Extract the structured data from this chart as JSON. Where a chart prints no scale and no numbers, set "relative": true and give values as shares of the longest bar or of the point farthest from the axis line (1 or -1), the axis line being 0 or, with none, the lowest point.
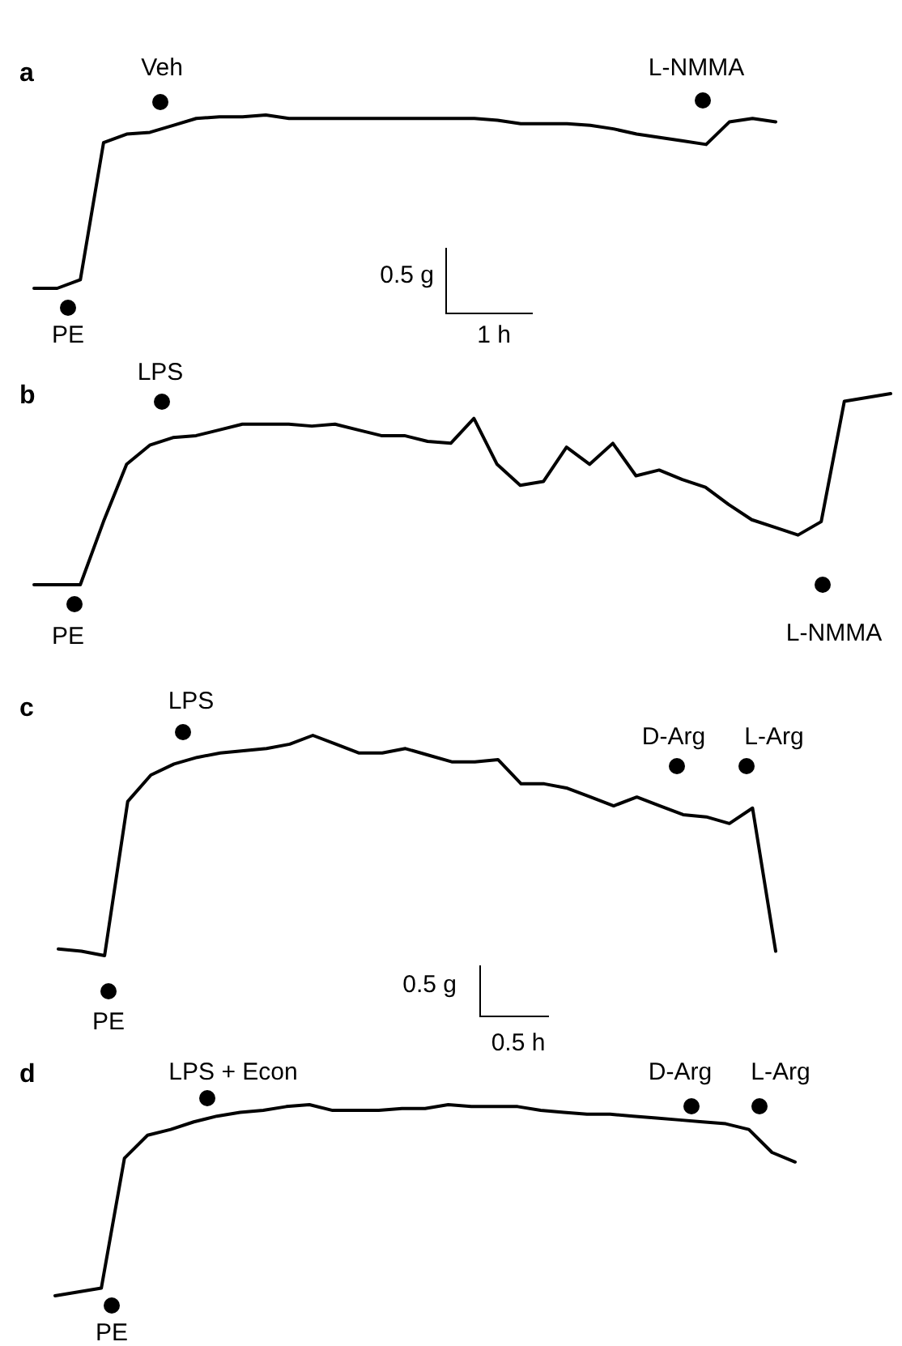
{
  "chart_data": [
    {
      "type": "line",
      "title": "a",
      "relative": true,
      "categories": [
        null,
        null,
        null,
        null,
        null,
        null,
        null,
        null,
        null,
        null,
        null,
        null,
        null,
        null,
        null,
        null,
        null,
        null,
        null,
        null,
        null,
        null,
        null,
        null,
        null,
        null,
        null,
        null,
        null,
        null,
        null,
        null,
        null
      ],
      "series": [
        {
          "color": "#000000",
          "values": [
            0,
            0,
            0.05,
            0.84,
            0.89,
            0.9,
            0.94,
            0.98,
            0.99,
            0.99,
            1,
            0.98,
            0.98,
            0.98,
            0.98,
            0.98,
            0.98,
            0.98,
            0.98,
            0.98,
            0.97,
            0.95,
            0.95,
            0.95,
            0.94,
            0.92,
            0.89,
            0.87,
            0.85,
            0.83,
            0.96,
            0.98,
            0.96
          ]
        }
      ],
      "annotations": [
        "Veh",
        "L-NMMA",
        "PE",
        "0.5 g",
        "1 h"
      ]
    },
    {
      "type": "line",
      "title": "b",
      "relative": true,
      "categories": [
        null,
        null,
        null,
        null,
        null,
        null,
        null,
        null,
        null,
        null,
        null,
        null,
        null,
        null,
        null,
        null,
        null,
        null,
        null,
        null,
        null,
        null,
        null,
        null,
        null,
        null,
        null,
        null,
        null,
        null,
        null,
        null,
        null,
        null,
        null,
        null,
        null,
        null
      ],
      "series": [
        {
          "color": "#000000",
          "values": [
            0,
            0,
            0,
            0.33,
            0.63,
            0.73,
            0.77,
            0.78,
            0.81,
            0.84,
            0.84,
            0.84,
            0.83,
            0.84,
            0.81,
            0.78,
            0.78,
            0.75,
            0.74,
            0.87,
            0.63,
            0.52,
            0.54,
            0.72,
            0.63,
            0.74,
            0.57,
            0.6,
            0.55,
            0.51,
            0.42,
            0.34,
            0.3,
            0.26,
            0.33,
            0.96,
            0.98,
            1
          ]
        }
      ],
      "annotations": [
        "LPS",
        "PE",
        "L-NMMA"
      ]
    },
    {
      "type": "line",
      "title": "c",
      "relative": true,
      "categories": [
        null,
        null,
        null,
        null,
        null,
        null,
        null,
        null,
        null,
        null,
        null,
        null,
        null,
        null,
        null,
        null,
        null,
        null,
        null,
        null,
        null,
        null,
        null,
        null,
        null,
        null,
        null,
        null,
        null,
        null,
        null,
        null
      ],
      "series": [
        {
          "color": "#000000",
          "values": [
            0.03,
            0.02,
            0,
            0.7,
            0.82,
            0.87,
            0.9,
            0.92,
            0.93,
            0.94,
            0.96,
            1,
            0.96,
            0.92,
            0.92,
            0.94,
            0.91,
            0.88,
            0.88,
            0.89,
            0.78,
            0.78,
            0.76,
            0.72,
            0.68,
            0.72,
            0.68,
            0.64,
            0.63,
            0.6,
            0.67,
            0.02
          ]
        }
      ],
      "annotations": [
        "LPS",
        "D-Arg",
        "L-Arg",
        "PE",
        "0.5 g",
        "0.5 h"
      ]
    },
    {
      "type": "line",
      "title": "d",
      "relative": true,
      "categories": [
        null,
        null,
        null,
        null,
        null,
        null,
        null,
        null,
        null,
        null,
        null,
        null,
        null,
        null,
        null,
        null,
        null,
        null,
        null,
        null,
        null,
        null,
        null,
        null,
        null,
        null,
        null,
        null,
        null,
        null,
        null,
        null,
        null
      ],
      "series": [
        {
          "color": "#000000",
          "values": [
            0,
            0.02,
            0.04,
            0.72,
            0.84,
            0.87,
            0.91,
            0.94,
            0.96,
            0.97,
            0.99,
            1,
            0.97,
            0.97,
            0.97,
            0.98,
            0.98,
            1,
            0.99,
            0.99,
            0.99,
            0.97,
            0.96,
            0.95,
            0.95,
            0.94,
            0.93,
            0.92,
            0.91,
            0.9,
            0.87,
            0.75,
            0.7
          ]
        }
      ],
      "annotations": [
        "LPS + Econ",
        "D-Arg",
        "L-Arg",
        "PE"
      ]
    }
  ]
}
